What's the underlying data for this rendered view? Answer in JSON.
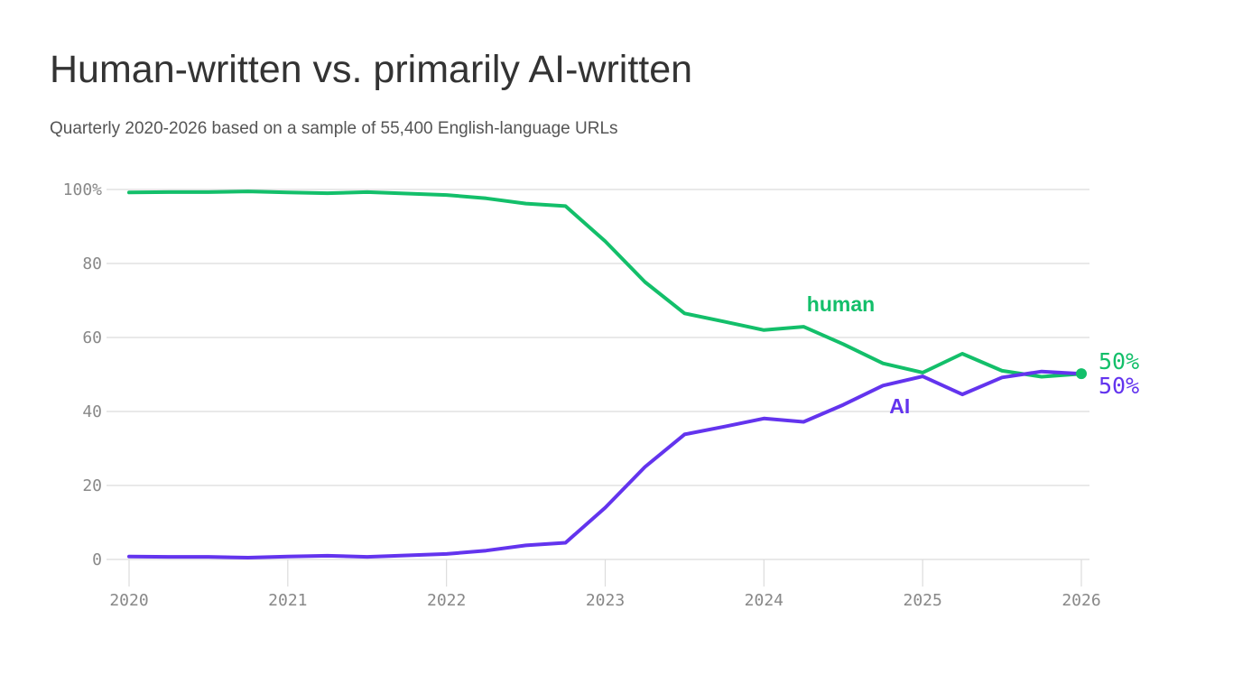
{
  "colors": {
    "human": "#13bf6a",
    "ai": "#6334ee",
    "grid": "#dcdcdc",
    "tick": "#888888"
  },
  "chart_data": {
    "type": "line",
    "title": "Human-written vs. primarily AI-written",
    "subtitle": "Quarterly 2020-2026 based on a sample of 55,400 English-language URLs",
    "xlabel": "",
    "ylabel": "",
    "xlim": [
      2020,
      2026
    ],
    "ylim": [
      0,
      100
    ],
    "x_ticks": [
      2020,
      2021,
      2022,
      2023,
      2024,
      2025,
      2026
    ],
    "x_tick_labels": [
      "2020",
      "2021",
      "2022",
      "2023",
      "2024",
      "2025",
      "2026"
    ],
    "y_ticks": [
      0,
      20,
      40,
      60,
      80,
      100
    ],
    "y_tick_labels": [
      "0",
      "20",
      "40",
      "60",
      "80",
      "100%"
    ],
    "grid": true,
    "x": [
      2020,
      2020.25,
      2020.5,
      2020.75,
      2021,
      2021.25,
      2021.5,
      2021.75,
      2022,
      2022.25,
      2022.5,
      2022.75,
      2023,
      2023.25,
      2023.5,
      2023.75,
      2024,
      2024.25,
      2024.5,
      2024.75,
      2025,
      2025.25,
      2025.5,
      2025.75,
      2026
    ],
    "series": [
      {
        "name": "human",
        "color_key": "human",
        "values": [
          99.2,
          99.3,
          99.3,
          99.5,
          99.2,
          99.0,
          99.3,
          98.9,
          98.5,
          97.6,
          96.2,
          95.5,
          86,
          75,
          66.5,
          64.3,
          62,
          62.9,
          58.2,
          53,
          50.5,
          55.6,
          51,
          49.4,
          50.2
        ],
        "label": "human",
        "end_label": "50%"
      },
      {
        "name": "AI",
        "color_key": "ai",
        "values": [
          0.8,
          0.7,
          0.7,
          0.5,
          0.8,
          1.0,
          0.7,
          1.1,
          1.5,
          2.4,
          3.8,
          4.5,
          14,
          25,
          33.8,
          35.9,
          38.1,
          37.2,
          41.8,
          47,
          49.5,
          44.6,
          49.2,
          50.8,
          50.2
        ],
        "label": "AI",
        "end_label": "50%"
      }
    ]
  }
}
